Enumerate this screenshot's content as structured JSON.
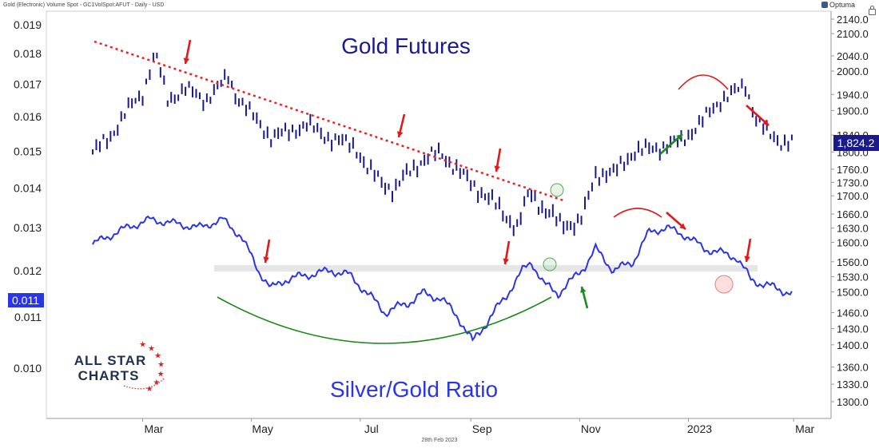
{
  "header": {
    "instrument": "Gold (Electronic) Volume Spot - GC1VolSpot:AFUT - Daily - USD",
    "provider": "Optuma",
    "date": "28th Feb 2023"
  },
  "annotations": {
    "gold_title": "Gold Futures",
    "ratio_title": "Silver/Gold Ratio",
    "brand_line1": "ALL STAR",
    "brand_line2": "CHARTS",
    "gold_last_label": "1,824.2",
    "ratio_last_label": "0.011"
  },
  "colors": {
    "gold": "#1a1a8c",
    "ratio": "#2a35e6",
    "trend": "#ee2222",
    "arrow_red": "#e01a1a",
    "arrow_green": "#1c8a1c",
    "arc_green": "#1c8a1c",
    "arc_red": "#e01a1a",
    "support_band": "#e6e6e6",
    "brand_navy": "#1f3050",
    "brand_red": "#d0282b"
  },
  "chart_data": {
    "type": "line",
    "x_ticks": [
      "Mar",
      "May",
      "Jul",
      "Sep",
      "Nov",
      "2023",
      "Mar"
    ],
    "left_axis": {
      "label": "Silver/Gold Ratio",
      "scale": "log",
      "ticks": [
        "0.019",
        "0.018",
        "0.017",
        "0.016",
        "0.015",
        "0.014",
        "0.013",
        "0.012",
        "0.011",
        "0.010"
      ],
      "tick_values": [
        0.019,
        0.018,
        0.017,
        0.016,
        0.015,
        0.014,
        0.013,
        0.012,
        0.011,
        0.01
      ]
    },
    "right_axis": {
      "label": "Gold Futures",
      "scale": "log",
      "ticks": [
        "2140.0",
        "2100.0",
        "2040.0",
        "2000.0",
        "1940.0",
        "1900.0",
        "1840.0",
        "1800.0",
        "1760.0",
        "1730.0",
        "1700.0",
        "1660.0",
        "1630.0",
        "1600.0",
        "1560.0",
        "1530.0",
        "1500.0",
        "1460.0",
        "1430.0",
        "1400.0",
        "1360.0",
        "1330.0",
        "1300.0"
      ],
      "tick_values": [
        2140,
        2100,
        2040,
        2000,
        1940,
        1900,
        1840,
        1800,
        1760,
        1730,
        1700,
        1660,
        1630,
        1600,
        1560,
        1530,
        1500,
        1460,
        1430,
        1400,
        1360,
        1330,
        1300
      ]
    },
    "series": [
      {
        "name": "Gold Futures",
        "axis": "right",
        "style": "bars",
        "points": [
          [
            "2022-02-01",
            1800
          ],
          [
            "2022-02-10",
            1830
          ],
          [
            "2022-02-20",
            1900
          ],
          [
            "2022-03-01",
            1940
          ],
          [
            "2022-03-08",
            2050
          ],
          [
            "2022-03-15",
            1925
          ],
          [
            "2022-03-25",
            1955
          ],
          [
            "2022-04-05",
            1925
          ],
          [
            "2022-04-18",
            1985
          ],
          [
            "2022-04-22",
            1940
          ],
          [
            "2022-05-01",
            1890
          ],
          [
            "2022-05-12",
            1835
          ],
          [
            "2022-05-20",
            1845
          ],
          [
            "2022-06-01",
            1865
          ],
          [
            "2022-06-15",
            1830
          ],
          [
            "2022-06-28",
            1815
          ],
          [
            "2022-07-05",
            1760
          ],
          [
            "2022-07-20",
            1710
          ],
          [
            "2022-07-28",
            1755
          ],
          [
            "2022-08-05",
            1780
          ],
          [
            "2022-08-15",
            1800
          ],
          [
            "2022-08-25",
            1755
          ],
          [
            "2022-09-05",
            1715
          ],
          [
            "2022-09-15",
            1680
          ],
          [
            "2022-09-27",
            1630
          ],
          [
            "2022-10-04",
            1710
          ],
          [
            "2022-10-12",
            1670
          ],
          [
            "2022-10-21",
            1640
          ],
          [
            "2022-11-01",
            1640
          ],
          [
            "2022-11-04",
            1670
          ],
          [
            "2022-11-10",
            1750
          ],
          [
            "2022-11-20",
            1750
          ],
          [
            "2022-12-01",
            1800
          ],
          [
            "2022-12-15",
            1810
          ],
          [
            "2022-12-28",
            1825
          ],
          [
            "2023-01-10",
            1880
          ],
          [
            "2023-01-20",
            1930
          ],
          [
            "2023-01-26",
            1945
          ],
          [
            "2023-02-02",
            1960
          ],
          [
            "2023-02-08",
            1880
          ],
          [
            "2023-02-15",
            1840
          ],
          [
            "2023-02-22",
            1825
          ],
          [
            "2023-02-28",
            1824.2
          ]
        ]
      },
      {
        "name": "Silver/Gold Ratio",
        "axis": "left",
        "style": "line",
        "points": [
          [
            "2022-02-01",
            0.0126
          ],
          [
            "2022-02-10",
            0.0128
          ],
          [
            "2022-02-20",
            0.013
          ],
          [
            "2022-03-05",
            0.0132
          ],
          [
            "2022-03-20",
            0.0131
          ],
          [
            "2022-04-01",
            0.013
          ],
          [
            "2022-04-15",
            0.0132
          ],
          [
            "2022-04-25",
            0.0128
          ],
          [
            "2022-05-05",
            0.012
          ],
          [
            "2022-05-12",
            0.0116
          ],
          [
            "2022-05-20",
            0.0118
          ],
          [
            "2022-06-01",
            0.0119
          ],
          [
            "2022-06-15",
            0.012
          ],
          [
            "2022-06-25",
            0.0119
          ],
          [
            "2022-07-05",
            0.0115
          ],
          [
            "2022-07-15",
            0.0111
          ],
          [
            "2022-07-28",
            0.0113
          ],
          [
            "2022-08-05",
            0.0115
          ],
          [
            "2022-08-15",
            0.0114
          ],
          [
            "2022-08-25",
            0.011
          ],
          [
            "2022-09-02",
            0.0105
          ],
          [
            "2022-09-08",
            0.0108
          ],
          [
            "2022-09-20",
            0.0114
          ],
          [
            "2022-09-30",
            0.012
          ],
          [
            "2022-10-05",
            0.0122
          ],
          [
            "2022-10-12",
            0.0117
          ],
          [
            "2022-10-20",
            0.0115
          ],
          [
            "2022-10-28",
            0.0118
          ],
          [
            "2022-11-04",
            0.0121
          ],
          [
            "2022-11-10",
            0.0125
          ],
          [
            "2022-11-20",
            0.012
          ],
          [
            "2022-12-01",
            0.0122
          ],
          [
            "2022-12-10",
            0.0129
          ],
          [
            "2022-12-20",
            0.013
          ],
          [
            "2022-12-31",
            0.0128
          ],
          [
            "2023-01-10",
            0.0125
          ],
          [
            "2023-01-20",
            0.0124
          ],
          [
            "2023-01-28",
            0.0123
          ],
          [
            "2023-02-05",
            0.0118
          ],
          [
            "2023-02-12",
            0.0117
          ],
          [
            "2023-02-20",
            0.0116
          ],
          [
            "2023-02-28",
            0.0115
          ]
        ]
      }
    ],
    "grid": false,
    "legend": "none"
  }
}
